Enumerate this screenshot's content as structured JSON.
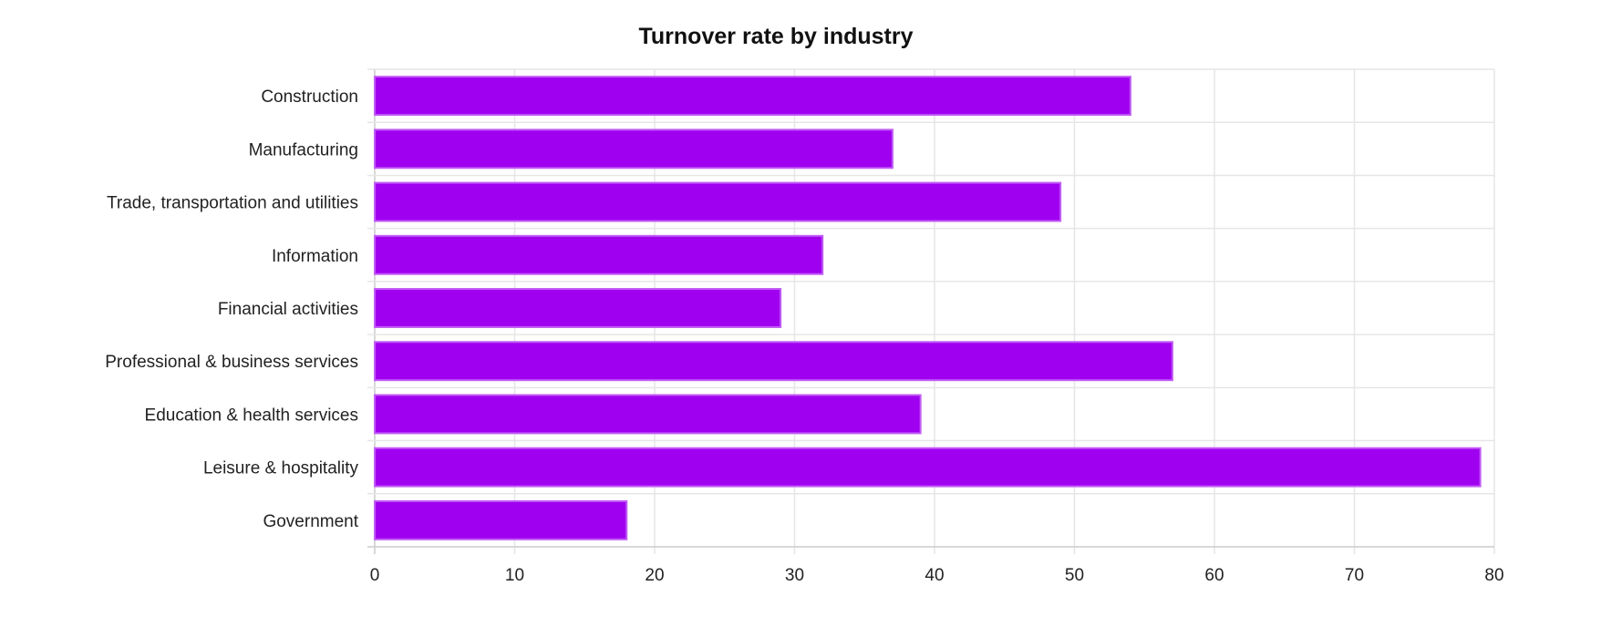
{
  "chart_data": {
    "type": "bar",
    "orientation": "horizontal",
    "title": "Turnover rate by industry",
    "xlabel": "",
    "ylabel": "",
    "categories": [
      "Construction",
      "Manufacturing",
      "Trade, transportation and utilities",
      "Information",
      "Financial activities",
      "Professional & business services",
      "Education & health services",
      "Leisure & hospitality",
      "Government"
    ],
    "values": [
      54,
      37,
      49,
      32,
      29,
      57,
      39,
      79,
      18
    ],
    "xlim": [
      0,
      80
    ],
    "xticks": [
      "0",
      "10",
      "20",
      "30",
      "40",
      "50",
      "60",
      "70",
      "80"
    ],
    "grid": true,
    "legend": "none",
    "colors": {
      "bar_fill": "#a000f0",
      "bar_stroke": "#c15cf5",
      "grid": "#e6e6e6",
      "axis": "#cccccc"
    }
  }
}
